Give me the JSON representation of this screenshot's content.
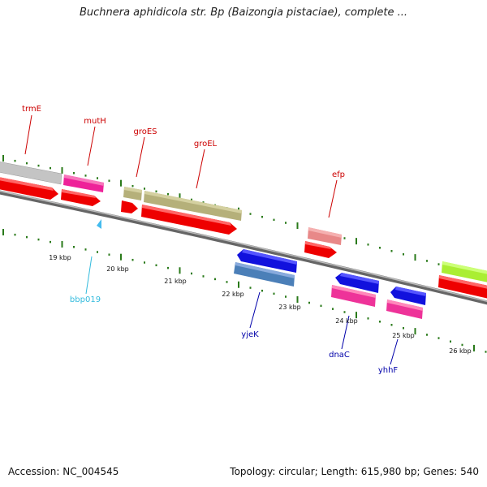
{
  "title": "Buchnera aphidicola str. Bp (Baizongia pistaciae), complete ...",
  "footer": {
    "accession": "Accession: NC_004545",
    "info": "Topology: circular; Length: 615,980 bp; Genes: 540"
  },
  "scale_labels": [
    "19 kbp",
    "20 kbp",
    "21 kbp",
    "22 kbp",
    "23 kbp",
    "24 kbp",
    "25 kbp",
    "26 kbp"
  ],
  "gene_labels": [
    {
      "name": "trmE",
      "color": "#cc0000"
    },
    {
      "name": "mutH",
      "color": "#cc0000"
    },
    {
      "name": "groES",
      "color": "#cc0000"
    },
    {
      "name": "groEL",
      "color": "#cc0000"
    },
    {
      "name": "efp",
      "color": "#cc0000"
    },
    {
      "name": "bbp019",
      "color": "#33bbdd"
    },
    {
      "name": "yjeK",
      "color": "#0000aa"
    },
    {
      "name": "dnaC",
      "color": "#0000aa"
    },
    {
      "name": "yhhF",
      "color": "#0000aa"
    }
  ],
  "colors": {
    "backbone": "#888888",
    "tick": "#2a7a1a",
    "cds": "#ee0000",
    "gray_gene": "#c4c4c4",
    "magenta_gene": "#ee2299",
    "olive_gene": "#b5b07a",
    "salmon_gene": "#e88888",
    "green_gene": "#aaee33",
    "blue_gene": "#1111dd",
    "steel_gene": "#4b7fb8",
    "pink_gene": "#ee3399",
    "cyan_marker": "#44bbee"
  }
}
